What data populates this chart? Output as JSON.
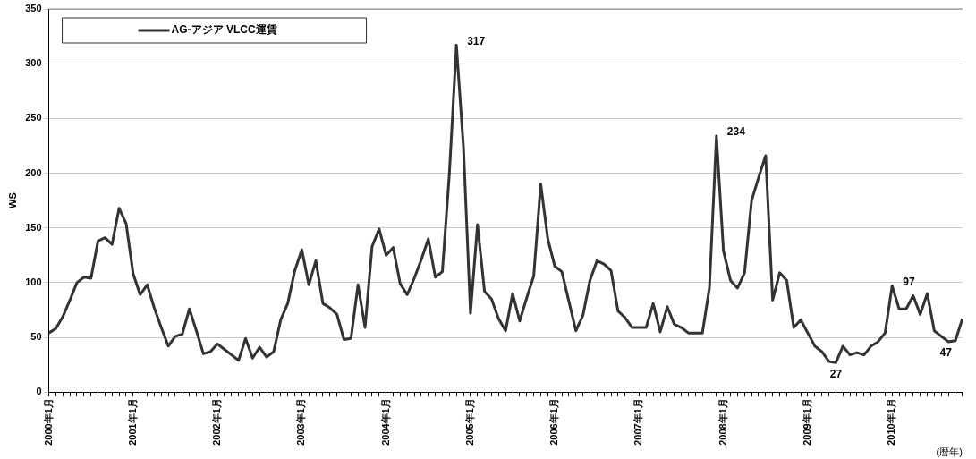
{
  "chart_data": {
    "type": "line",
    "ylabel": "WS",
    "xlabel": "(暦年)",
    "categories": [
      "2000年1月",
      null,
      null,
      null,
      null,
      null,
      null,
      null,
      null,
      null,
      null,
      null,
      "2001年1月",
      null,
      null,
      null,
      null,
      null,
      null,
      null,
      null,
      null,
      null,
      null,
      "2002年1月",
      null,
      null,
      null,
      null,
      null,
      null,
      null,
      null,
      null,
      null,
      null,
      "2003年1月",
      null,
      null,
      null,
      null,
      null,
      null,
      null,
      null,
      null,
      null,
      null,
      "2004年1月",
      null,
      null,
      null,
      null,
      null,
      null,
      null,
      null,
      null,
      null,
      null,
      "2005年1月",
      null,
      null,
      null,
      null,
      null,
      null,
      null,
      null,
      null,
      null,
      null,
      "2006年1月",
      null,
      null,
      null,
      null,
      null,
      null,
      null,
      null,
      null,
      null,
      null,
      "2007年1月",
      null,
      null,
      null,
      null,
      null,
      null,
      null,
      null,
      null,
      null,
      null,
      "2008年1月",
      null,
      null,
      null,
      null,
      null,
      null,
      null,
      null,
      null,
      null,
      null,
      "2009年1月",
      null,
      null,
      null,
      null,
      null,
      null,
      null,
      null,
      null,
      null,
      null,
      "2010年1月",
      null,
      null,
      null,
      null,
      null,
      null,
      null,
      null,
      null,
      null
    ],
    "series": [
      {
        "name": "AG-アジア VLCC運賃",
        "color": "#333333",
        "values": [
          54,
          58,
          69,
          84,
          100,
          105,
          104,
          138,
          141,
          135,
          168,
          154,
          108,
          89,
          98,
          77,
          59,
          42,
          51,
          53,
          76,
          56,
          35,
          37,
          44,
          39,
          34,
          29,
          49,
          31,
          41,
          32,
          37,
          66,
          81,
          111,
          130,
          98,
          120,
          81,
          77,
          71,
          48,
          49,
          98,
          59,
          133,
          149,
          125,
          132,
          99,
          89,
          104,
          121,
          140,
          105,
          110,
          200,
          317,
          224,
          72,
          153,
          92,
          85,
          67,
          56,
          90,
          65,
          86,
          106,
          190,
          140,
          115,
          110,
          83,
          56,
          70,
          102,
          120,
          117,
          111,
          74,
          68,
          59,
          59,
          59,
          81,
          55,
          78,
          62,
          59,
          54,
          54,
          54,
          95,
          234,
          129,
          102,
          95,
          109,
          175,
          196,
          216,
          84,
          109,
          102,
          59,
          66,
          54,
          42,
          37,
          28,
          27,
          42,
          34,
          36,
          34,
          42,
          46,
          54,
          97,
          76,
          76,
          88,
          71,
          90,
          56,
          51,
          46,
          47,
          67
        ],
        "value_labels": [
          null,
          null,
          null,
          null,
          null,
          null,
          null,
          null,
          null,
          null,
          null,
          null,
          null,
          null,
          null,
          null,
          null,
          null,
          null,
          null,
          null,
          null,
          null,
          null,
          null,
          null,
          null,
          null,
          null,
          null,
          null,
          null,
          null,
          null,
          null,
          null,
          null,
          null,
          null,
          null,
          null,
          null,
          null,
          null,
          null,
          null,
          null,
          null,
          null,
          null,
          null,
          null,
          null,
          null,
          null,
          null,
          null,
          null,
          "317",
          null,
          null,
          null,
          null,
          null,
          null,
          null,
          null,
          null,
          null,
          null,
          null,
          null,
          null,
          null,
          null,
          null,
          null,
          null,
          null,
          null,
          null,
          null,
          null,
          null,
          null,
          null,
          null,
          null,
          null,
          null,
          null,
          null,
          null,
          null,
          null,
          "234",
          null,
          null,
          null,
          null,
          null,
          null,
          null,
          null,
          null,
          null,
          null,
          null,
          null,
          null,
          null,
          null,
          "27",
          null,
          null,
          null,
          null,
          null,
          null,
          null,
          "97",
          null,
          null,
          null,
          null,
          null,
          null,
          null,
          null,
          "47",
          null
        ]
      }
    ],
    "ylim": [
      0,
      350
    ],
    "yticks": [
      0,
      50,
      100,
      150,
      200,
      250,
      300,
      350
    ],
    "grid": "y",
    "legend": "top left",
    "marker": "none",
    "line_style": "solid"
  }
}
